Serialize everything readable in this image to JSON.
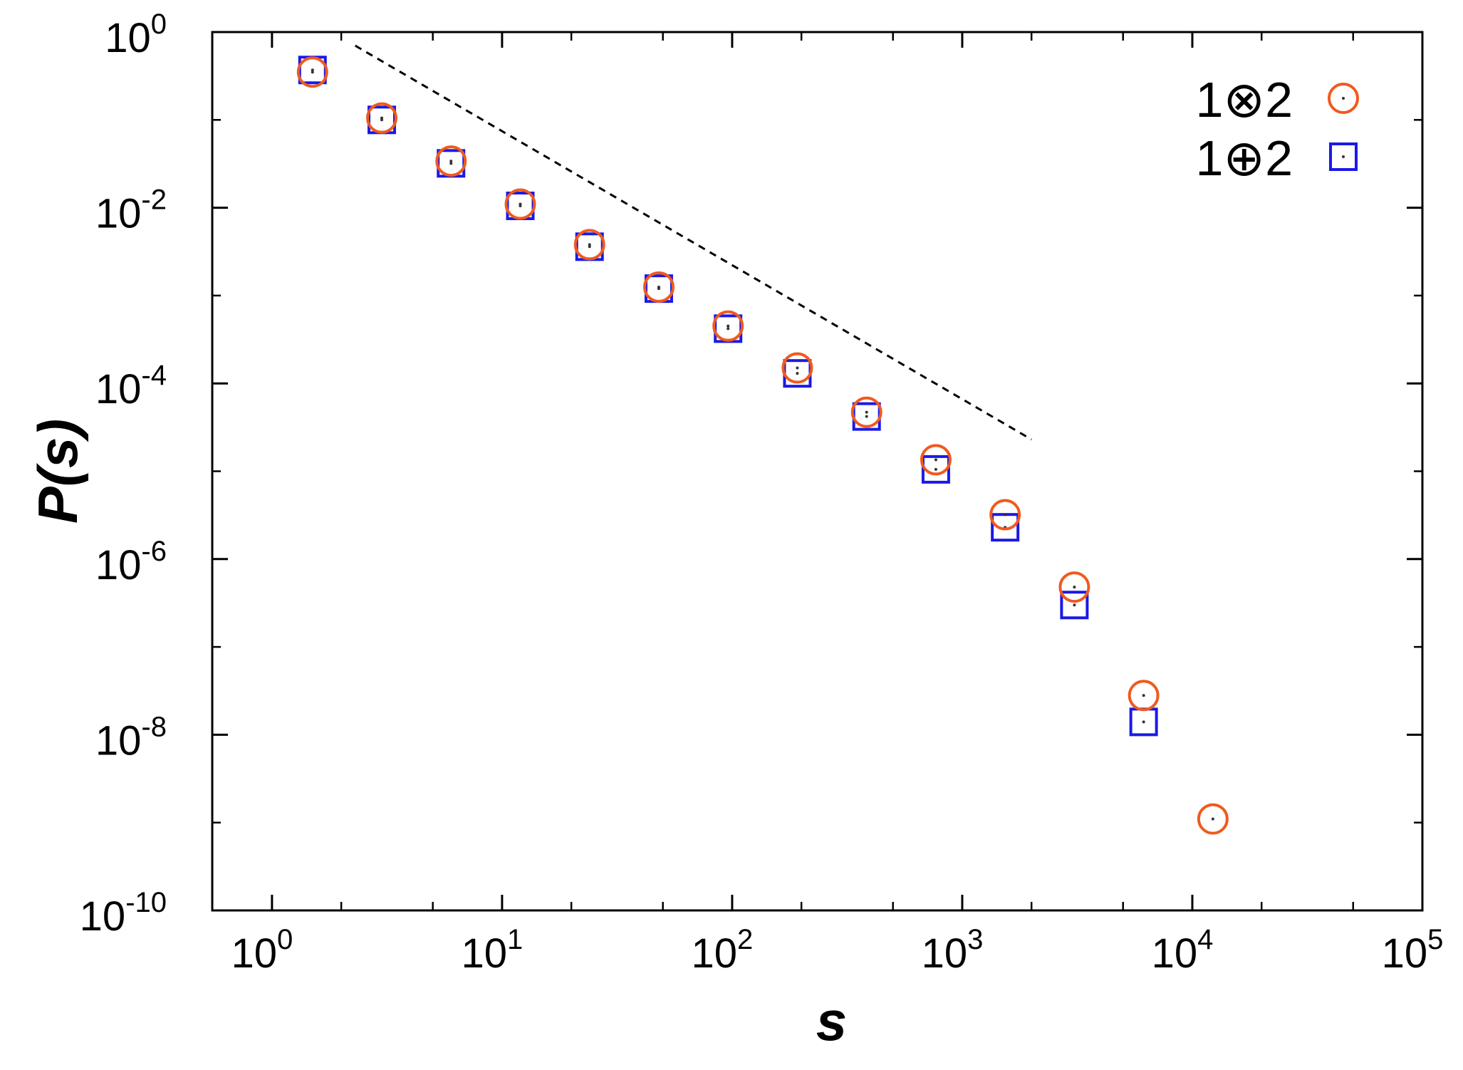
{
  "chart_data": {
    "type": "scatter",
    "xlabel": "s",
    "ylabel": "P(s)",
    "x_scale": "log",
    "y_scale": "log",
    "xlim": [
      0.55,
      100000
    ],
    "ylim": [
      1e-10,
      1
    ],
    "x_ticks": [
      {
        "value": 1,
        "base": "10",
        "exp": "0"
      },
      {
        "value": 10,
        "base": "10",
        "exp": "1"
      },
      {
        "value": 100,
        "base": "10",
        "exp": "2"
      },
      {
        "value": 1000,
        "base": "10",
        "exp": "3"
      },
      {
        "value": 10000,
        "base": "10",
        "exp": "4"
      },
      {
        "value": 100000,
        "base": "10",
        "exp": "5"
      }
    ],
    "y_ticks": [
      {
        "value": 1,
        "base": "10",
        "exp": "0"
      },
      {
        "value": 0.01,
        "base": "10",
        "exp": "-2"
      },
      {
        "value": 0.0001,
        "base": "10",
        "exp": "-4"
      },
      {
        "value": 1e-06,
        "base": "10",
        "exp": "-6"
      },
      {
        "value": 1e-08,
        "base": "10",
        "exp": "-8"
      },
      {
        "value": 1e-10,
        "base": "10",
        "exp": "-10"
      }
    ],
    "legend_position": "top-right",
    "series": [
      {
        "name": "1⊗2",
        "marker": "circle",
        "color": "#f05a1e",
        "x": [
          1.5,
          3,
          6,
          12,
          24,
          48,
          96,
          192,
          384,
          768,
          1536,
          3072,
          6144,
          12288
        ],
        "y": [
          0.35,
          0.105,
          0.034,
          0.011,
          0.0038,
          0.00125,
          0.00045,
          0.00015,
          4.7e-05,
          1.35e-05,
          3.2e-06,
          4.8e-07,
          2.8e-08,
          1.1e-09
        ]
      },
      {
        "name": "1⊕2",
        "marker": "square",
        "color": "#1a1ae6",
        "x": [
          1.5,
          3,
          6,
          12,
          24,
          48,
          96,
          192,
          384,
          768,
          1536,
          3072,
          6144
        ],
        "y": [
          0.37,
          0.1,
          0.032,
          0.0105,
          0.0036,
          0.0012,
          0.00042,
          0.00013,
          4.2e-05,
          1.05e-05,
          2.3e-06,
          3e-07,
          1.4e-08
        ]
      }
    ],
    "reference_line": {
      "style": "dashed",
      "color": "#000000",
      "x": [
        2.3,
        2000
      ],
      "y": [
        0.7,
        2.3e-05
      ]
    }
  }
}
